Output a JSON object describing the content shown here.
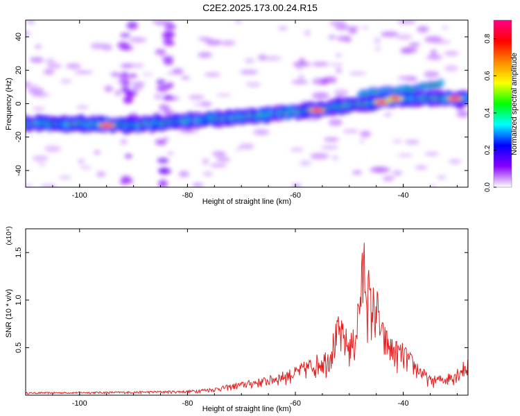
{
  "chart_data": [
    {
      "type": "heatmap",
      "title": "C2E2.2025.173.00.24.R15",
      "xlabel": "Height of straight line (km)",
      "ylabel": "Frequency (Hz)",
      "xlim": [
        -110,
        -28
      ],
      "ylim": [
        -50,
        50
      ],
      "xticks": [
        -100,
        -80,
        -60,
        -40
      ],
      "yticks": [
        40,
        20,
        0,
        -20,
        -40
      ],
      "ridge": [
        {
          "x": -110,
          "y": -12
        },
        {
          "x": -100,
          "y": -12
        },
        {
          "x": -90,
          "y": -13
        },
        {
          "x": -80,
          "y": -10
        },
        {
          "x": -70,
          "y": -8
        },
        {
          "x": -60,
          "y": -5
        },
        {
          "x": -50,
          "y": -1
        },
        {
          "x": -40,
          "y": 3
        },
        {
          "x": -30,
          "y": 3
        }
      ],
      "peaks": [
        {
          "x": -95,
          "y": -13,
          "amp": 0.9
        },
        {
          "x": -56,
          "y": -4,
          "amp": 0.9
        },
        {
          "x": -44,
          "y": 1,
          "amp": 0.85
        },
        {
          "x": -41.5,
          "y": 3,
          "amp": 0.8
        },
        {
          "x": -30.5,
          "y": 3,
          "amp": 0.9
        }
      ],
      "upper_branch": [
        {
          "x": -48,
          "y": 6
        },
        {
          "x": -40,
          "y": 8
        },
        {
          "x": -33,
          "y": 12
        }
      ],
      "colorbar": {
        "label": "Normalized spectral amplitude",
        "range": [
          0,
          0.9
        ],
        "ticks": [
          "0.0",
          "0.2",
          "0.4",
          "0.6",
          "0.8"
        ],
        "colors": [
          "#ffffff",
          "#8800ff",
          "#0000ff",
          "#00ffff",
          "#00ff00",
          "#ffff00",
          "#ff8800",
          "#ff0000",
          "#ff0088"
        ]
      }
    },
    {
      "type": "line",
      "xlabel": "Height of straight line (km)",
      "ylabel": "SNR (10 * v/v)",
      "multiplier": "(x10⁴)",
      "xlim": [
        -110,
        -28
      ],
      "ylim": [
        0,
        1.75
      ],
      "xticks": [
        -100,
        -80,
        -60,
        -40
      ],
      "yticks": [
        "0.5",
        "1.0",
        "1.5"
      ],
      "line_color": "#e02020",
      "envelope": [
        {
          "x": -110,
          "y": 0.03
        },
        {
          "x": -90,
          "y": 0.04
        },
        {
          "x": -80,
          "y": 0.05
        },
        {
          "x": -75,
          "y": 0.08
        },
        {
          "x": -70,
          "y": 0.14
        },
        {
          "x": -65,
          "y": 0.2
        },
        {
          "x": -60,
          "y": 0.3
        },
        {
          "x": -57,
          "y": 0.4
        },
        {
          "x": -54,
          "y": 0.5
        },
        {
          "x": -52,
          "y": 0.85
        },
        {
          "x": -50,
          "y": 0.65
        },
        {
          "x": -49,
          "y": 0.72
        },
        {
          "x": -48,
          "y": 1.3
        },
        {
          "x": -47.2,
          "y": 1.75
        },
        {
          "x": -46,
          "y": 1.15
        },
        {
          "x": -45,
          "y": 1.2
        },
        {
          "x": -44,
          "y": 0.8
        },
        {
          "x": -42,
          "y": 0.6
        },
        {
          "x": -40,
          "y": 0.55
        },
        {
          "x": -38,
          "y": 0.4
        },
        {
          "x": -35,
          "y": 0.2
        },
        {
          "x": -32,
          "y": 0.22
        },
        {
          "x": -30,
          "y": 0.3
        },
        {
          "x": -28,
          "y": 0.4
        }
      ]
    }
  ]
}
